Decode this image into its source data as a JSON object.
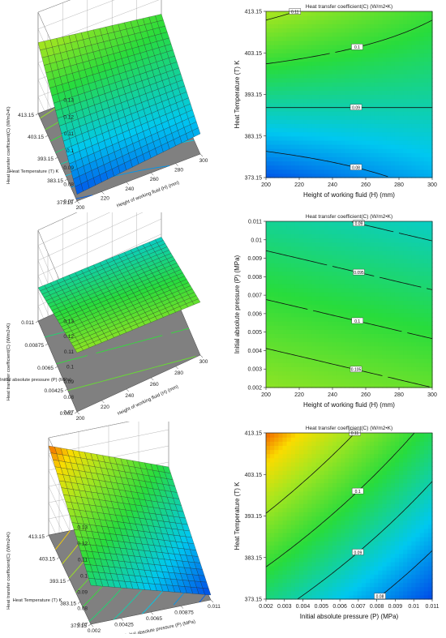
{
  "chart_data": [
    {
      "type": "surface3d",
      "ztitle": "Heat transfer coefficient(C) (W/m2•K)",
      "xlabel": "Height of working fluid (H) (mm)",
      "ylabel": "Heat Temperature (T) K",
      "xticks": [
        "200",
        "220",
        "240",
        "260",
        "280",
        "300"
      ],
      "yticks": [
        "373.15",
        "383.15",
        "393.15",
        "403.15",
        "413.15"
      ],
      "zticks": [
        "0.07",
        "0.08",
        "0.09",
        "0.1",
        "0.11",
        "0.12",
        "0.13"
      ],
      "xlim": [
        200,
        300
      ],
      "ylim": [
        373.15,
        413.15
      ],
      "zlim": [
        0.07,
        0.13
      ],
      "corner_z": {
        "x0y0": 0.074,
        "x1y0": 0.082,
        "x0y1": 0.112,
        "x1y1": 0.101
      }
    },
    {
      "type": "contour",
      "title": "Heat transfer coefficient(C) (W/m2•K)",
      "xlabel": "Height of working fluid (H) (mm)",
      "ylabel": "Heat Temperature (T) K",
      "xticks": [
        "200",
        "220",
        "240",
        "260",
        "280",
        "300"
      ],
      "yticks": [
        "373.15",
        "383.15",
        "393.15",
        "403.15",
        "413.15"
      ],
      "xlim": [
        200,
        300
      ],
      "ylim": [
        373.15,
        413.15
      ],
      "corner_z": {
        "x0y0": 0.074,
        "x1y0": 0.082,
        "x0y1": 0.112,
        "x1y1": 0.101
      },
      "contour_labels": [
        "0.08",
        "0.09",
        "0.1",
        "0.11"
      ]
    },
    {
      "type": "surface3d",
      "ztitle": "Heat transfer coefficient(C) (W/m2•K)",
      "xlabel": "Height of working fluid (H) (mm)",
      "ylabel": "Initial absolute pressure (P) (MPa)",
      "xticks": [
        "200",
        "220",
        "240",
        "260",
        "280",
        "300"
      ],
      "yticks": [
        "0.002",
        "0.00425",
        "0.0065",
        "0.00875",
        "0.011"
      ],
      "zticks": [
        "0.07",
        "0.08",
        "0.09",
        "0.1",
        "0.11",
        "0.12",
        "0.13"
      ],
      "xlim": [
        200,
        300
      ],
      "ylim": [
        0.002,
        0.011
      ],
      "zlim": [
        0.07,
        0.13
      ],
      "corner_z": {
        "x0y0": 0.109,
        "x1y0": 0.105,
        "x0y1": 0.092,
        "x1y1": 0.088
      }
    },
    {
      "type": "contour",
      "title": "Heat transfer coefficient(C) (W/m2•K)",
      "xlabel": "Height of working fluid (H) (mm)",
      "ylabel": "Initial absolute pressure (P) (MPa)",
      "xticks": [
        "200",
        "220",
        "240",
        "260",
        "280",
        "300"
      ],
      "yticks": [
        "0.002",
        "0.003",
        "0.004",
        "0.005",
        "0.006",
        "0.007",
        "0.008",
        "0.009",
        "0.01",
        "0.011"
      ],
      "xlim": [
        200,
        300
      ],
      "ylim": [
        0.002,
        0.011
      ],
      "corner_z": {
        "x0y0": 0.109,
        "x1y0": 0.105,
        "x0y1": 0.092,
        "x1y1": 0.088
      },
      "contour_labels": [
        "0.09",
        "0.095",
        "0.1",
        "0.105",
        "0.11"
      ]
    },
    {
      "type": "surface3d",
      "ztitle": "Heat transfer coefficient(C) (W/m2•K)",
      "xlabel": "Initial absolute pressure (P) (MPa)",
      "ylabel": "Heat Temperature (T) K",
      "xticks": [
        "0.002",
        "0.00425",
        "0.0065",
        "0.00875",
        "0.011"
      ],
      "yticks": [
        "373.15",
        "383.15",
        "393.15",
        "403.15",
        "413.15"
      ],
      "zticks": [
        "0.07",
        "0.08",
        "0.09",
        "0.1",
        "0.11",
        "0.12",
        "0.13"
      ],
      "xlim": [
        0.002,
        0.011
      ],
      "ylim": [
        373.15,
        413.15
      ],
      "zlim": [
        0.07,
        0.13
      ],
      "corner_z": {
        "x0y0": 0.094,
        "x1y0": 0.073,
        "x0y1": 0.125,
        "x1y1": 0.097
      }
    },
    {
      "type": "contour",
      "title": "Heat transfer coefficient(C) (W/m2•K)",
      "xlabel": "Initial absolute pressure (P) (MPa)",
      "ylabel": "Heat Temperature (T) K",
      "xticks": [
        "0.002",
        "0.003",
        "0.004",
        "0.005",
        "0.006",
        "0.007",
        "0.008",
        "0.009",
        "0.01",
        "0.011"
      ],
      "yticks": [
        "373.15",
        "383.15",
        "393.15",
        "403.15",
        "413.15"
      ],
      "xlim": [
        0.002,
        0.011
      ],
      "ylim": [
        373.15,
        413.15
      ],
      "corner_z": {
        "x0y0": 0.094,
        "x1y0": 0.073,
        "x0y1": 0.125,
        "x1y1": 0.097
      },
      "contour_labels": [
        "0.08",
        "0.09",
        "0.1",
        "0.11"
      ]
    }
  ]
}
